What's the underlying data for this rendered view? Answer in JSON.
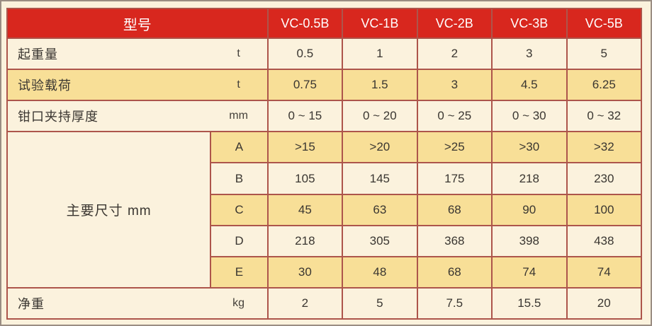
{
  "table": {
    "header": {
      "label": "型号",
      "models": [
        "VC-0.5B",
        "VC-1B",
        "VC-2B",
        "VC-3B",
        "VC-5B"
      ]
    },
    "rows": [
      {
        "label": "起重量",
        "unit": "t",
        "values": [
          "0.5",
          "1",
          "2",
          "3",
          "5"
        ]
      },
      {
        "label": "试验载荷",
        "unit": "t",
        "values": [
          "0.75",
          "1.5",
          "3",
          "4.5",
          "6.25"
        ]
      },
      {
        "label": "钳口夹持厚度",
        "unit": "mm",
        "values": [
          "0 ~ 15",
          "0 ~ 20",
          "0 ~ 25",
          "0 ~ 30",
          "0 ~ 32"
        ]
      }
    ],
    "dimension_section": {
      "label": "主要尺寸  mm",
      "rows": [
        {
          "key": "A",
          "values": [
            ">15",
            ">20",
            ">25",
            ">30",
            ">32"
          ]
        },
        {
          "key": "B",
          "values": [
            "105",
            "145",
            "175",
            "218",
            "230"
          ]
        },
        {
          "key": "C",
          "values": [
            "45",
            "63",
            "68",
            "90",
            "100"
          ]
        },
        {
          "key": "D",
          "values": [
            "218",
            "305",
            "368",
            "398",
            "438"
          ]
        },
        {
          "key": "E",
          "values": [
            "30",
            "48",
            "68",
            "74",
            "74"
          ]
        }
      ]
    },
    "footer_row": {
      "label": "净重",
      "unit": "kg",
      "values": [
        "2",
        "5",
        "7.5",
        "15.5",
        "20"
      ]
    }
  },
  "colors": {
    "header_red": "#d8271e",
    "row_yellow": "#f8df97",
    "row_cream": "#fbf2dd",
    "grid_border": "#ad554b",
    "frame_border": "#9a8d83",
    "header_text": "#ffffff",
    "body_text": "#3a3631"
  }
}
